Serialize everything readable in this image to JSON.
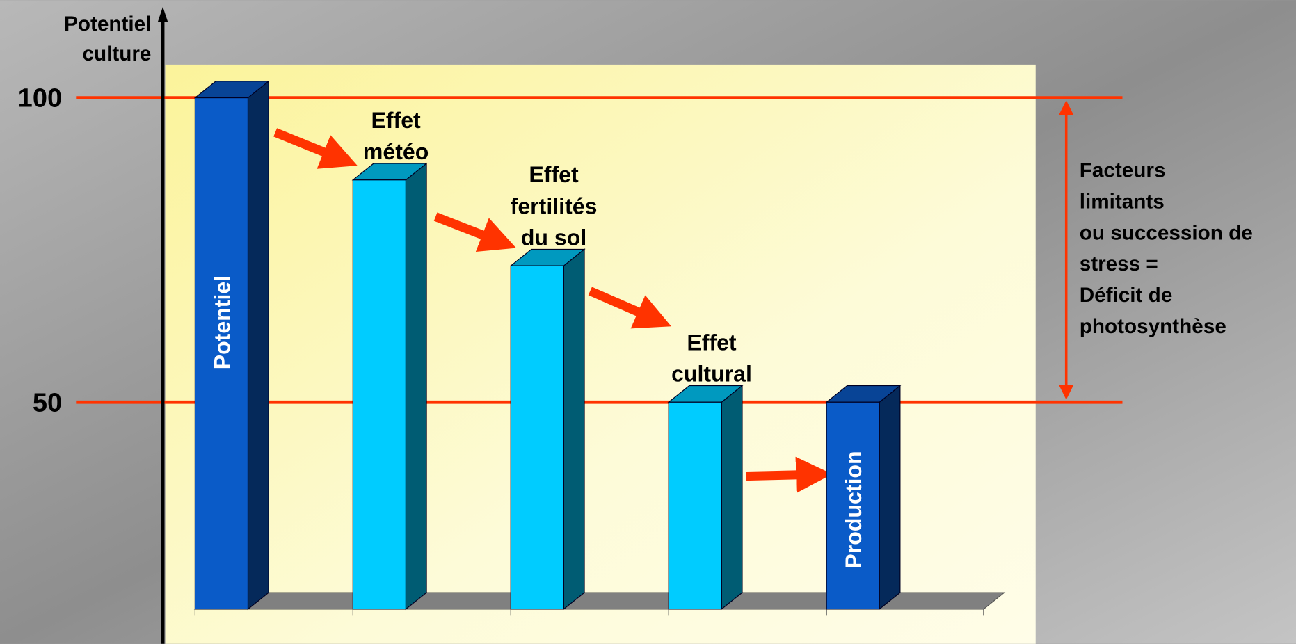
{
  "chart_data": {
    "type": "bar3d",
    "y_label": [
      "Potentiel",
      "culture"
    ],
    "categories": [
      [
        "Potentiel"
      ],
      [
        "Effet",
        "météo"
      ],
      [
        "Effet",
        "fertilités",
        "du sol"
      ],
      [
        "Effet",
        "cultural"
      ],
      [
        "Production"
      ]
    ],
    "values": [
      100,
      86.5,
      72.4,
      50,
      50
    ],
    "colors": [
      "#0a5bc8",
      "#00ccff",
      "#00ccff",
      "#00ccff",
      "#0a5bc8"
    ],
    "label_inside": [
      true,
      false,
      false,
      false,
      true
    ],
    "ylim": [
      16,
      114
    ],
    "yticks": [
      50,
      100
    ],
    "grid": true,
    "grid_color": "#ff3300",
    "annotation": [
      "Facteurs",
      "limitants",
      "ou succession de",
      "stress =",
      "Déficit de",
      "photosynthèse"
    ]
  }
}
